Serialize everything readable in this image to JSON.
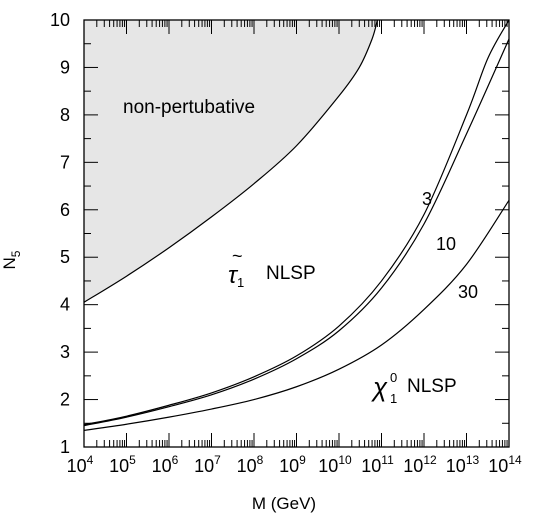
{
  "chart_data": {
    "type": "line",
    "title": "",
    "xlabel": "M (GeV)",
    "ylabel": "N",
    "ylabel_sub": "5",
    "x_scale": "log",
    "xlim": [
      10000,
      100000000000000
    ],
    "ylim": [
      1,
      10
    ],
    "x_ticks": [
      {
        "base": "10",
        "exp": "4",
        "value": 10000
      },
      {
        "base": "10",
        "exp": "5",
        "value": 100000
      },
      {
        "base": "10",
        "exp": "6",
        "value": 1000000
      },
      {
        "base": "10",
        "exp": "7",
        "value": 10000000
      },
      {
        "base": "10",
        "exp": "8",
        "value": 100000000
      },
      {
        "base": "10",
        "exp": "9",
        "value": 1000000000
      },
      {
        "base": "10",
        "exp": "10",
        "value": 10000000000
      },
      {
        "base": "10",
        "exp": "11",
        "value": 100000000000
      },
      {
        "base": "10",
        "exp": "12",
        "value": 1000000000000
      },
      {
        "base": "10",
        "exp": "13",
        "value": 10000000000000
      },
      {
        "base": "10",
        "exp": "14",
        "value": 100000000000000
      }
    ],
    "y_ticks": [
      "1",
      "2",
      "3",
      "4",
      "5",
      "6",
      "7",
      "8",
      "9",
      "10"
    ],
    "grid": false,
    "series": [
      {
        "name": "3",
        "x": [
          10000,
          100000,
          1000000,
          10000000,
          100000000,
          1000000000,
          10000000000,
          100000000000,
          1000000000000,
          10000000000000,
          32000000000000,
          100000000000000
        ],
        "y": [
          1.47,
          1.65,
          1.88,
          2.14,
          2.48,
          2.92,
          3.55,
          4.5,
          5.9,
          8.0,
          9.2,
          10.0
        ]
      },
      {
        "name": "10",
        "x": [
          10000,
          100000,
          1000000,
          10000000,
          100000000,
          1000000000,
          10000000000,
          100000000000,
          1000000000000,
          10000000000000,
          100000000000000
        ],
        "y": [
          1.45,
          1.63,
          1.85,
          2.1,
          2.43,
          2.86,
          3.45,
          4.35,
          5.7,
          7.6,
          9.6
        ]
      },
      {
        "name": "30",
        "x": [
          10000,
          100000,
          1000000,
          10000000,
          100000000,
          1000000000,
          10000000000,
          100000000000,
          1000000000000,
          10000000000000,
          100000000000000
        ],
        "y": [
          1.35,
          1.48,
          1.63,
          1.8,
          2.0,
          2.27,
          2.64,
          3.15,
          3.9,
          4.85,
          6.2
        ]
      },
      {
        "name": "non-pertubative boundary",
        "x": [
          10000,
          100000,
          1000000,
          10000000,
          100000000,
          1000000000,
          10000000000,
          30000000000,
          60000000000,
          80000000000
        ],
        "y": [
          4.05,
          4.6,
          5.2,
          5.85,
          6.55,
          7.35,
          8.4,
          9.0,
          9.6,
          10.0
        ]
      }
    ],
    "annotations": {
      "region_label": "non-pertubative",
      "curve_label_3": "3",
      "curve_label_10": "10",
      "curve_label_30": "30",
      "stau_symbol": "τ",
      "stau_tilde": "~",
      "stau_sub": "1",
      "stau_text": "NLSP",
      "chi_symbol": "χ",
      "chi_sup": "0",
      "chi_sub": "1",
      "chi_text": "NLSP"
    },
    "colors": {
      "region_fill": "#e6e6e6",
      "line": "#000000"
    }
  }
}
